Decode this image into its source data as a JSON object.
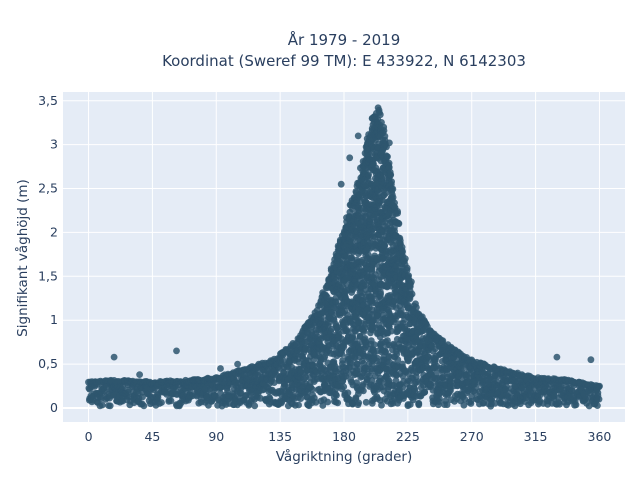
{
  "chart_data": {
    "type": "scatter",
    "title_line1": "År 1979 - 2019",
    "title_line2": "Koordinat (Sweref 99 TM): E 433922, N 6142303",
    "xlabel": "Vågriktning (grader)",
    "ylabel": "Signifikant våghöjd (m)",
    "xlim": [
      -18,
      378
    ],
    "ylim": [
      -0.16,
      3.6
    ],
    "x_ticks": [
      0,
      45,
      90,
      135,
      180,
      225,
      270,
      315,
      360
    ],
    "x_tick_labels": [
      "0",
      "45",
      "90",
      "135",
      "180",
      "225",
      "270",
      "315",
      "360"
    ],
    "y_ticks": [
      0,
      0.5,
      1,
      1.5,
      2,
      2.5,
      3,
      3.5
    ],
    "y_tick_labels": [
      "0",
      "0,5",
      "1",
      "1,5",
      "2",
      "2,5",
      "3",
      "3,5"
    ],
    "grid": true,
    "marker_color": "#2e566e",
    "plot_background": "#e5ecf6",
    "envelope": {
      "direction": [
        0,
        20,
        45,
        70,
        90,
        110,
        130,
        145,
        160,
        170,
        180,
        190,
        200,
        205,
        210,
        220,
        230,
        240,
        255,
        270,
        290,
        315,
        340,
        360
      ],
      "max_height": [
        0.3,
        0.32,
        0.3,
        0.32,
        0.35,
        0.45,
        0.55,
        0.75,
        1.1,
        1.5,
        2.05,
        2.6,
        3.3,
        3.42,
        3.0,
        1.95,
        1.2,
        0.9,
        0.7,
        0.55,
        0.45,
        0.35,
        0.32,
        0.25
      ]
    },
    "outliers": [
      {
        "x": 18,
        "y": 0.58
      },
      {
        "x": 36,
        "y": 0.38
      },
      {
        "x": 62,
        "y": 0.65
      },
      {
        "x": 93,
        "y": 0.45
      },
      {
        "x": 105,
        "y": 0.5
      },
      {
        "x": 190,
        "y": 3.1
      },
      {
        "x": 196,
        "y": 2.95
      },
      {
        "x": 200,
        "y": 3.3
      },
      {
        "x": 204,
        "y": 3.42
      },
      {
        "x": 208,
        "y": 3.2
      },
      {
        "x": 212,
        "y": 3.02
      },
      {
        "x": 184,
        "y": 2.85
      },
      {
        "x": 178,
        "y": 2.55
      },
      {
        "x": 330,
        "y": 0.58
      },
      {
        "x": 354,
        "y": 0.55
      }
    ]
  }
}
